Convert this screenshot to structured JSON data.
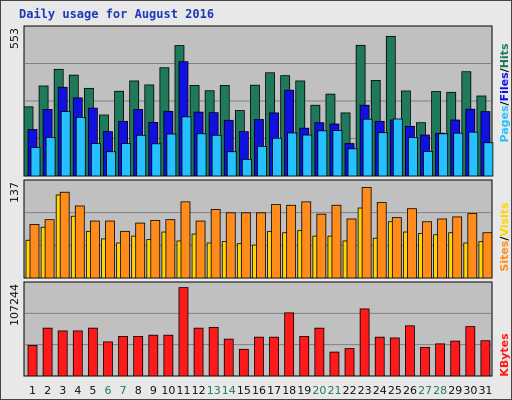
{
  "title": "Daily usage for August 2016",
  "colors": {
    "background": "#e8e8e8",
    "panel": "#c0c0c0",
    "grid": "#808080",
    "hits": "#1e7a5b",
    "files": "#1010e0",
    "pages": "#24c0ff",
    "visits": "#ffd400",
    "sites": "#ff8c1a",
    "kbytes": "#ff1a1a",
    "weekday_label": "#111111",
    "weekend_label": "#1e7a5b"
  },
  "chart_data": [
    {
      "type": "bar",
      "panel": "hits-files-pages",
      "ylim": [
        0,
        553
      ],
      "top_tick_label": "553",
      "legend": {
        "pages": "Pages",
        "files": "Files",
        "hits": "Hits",
        "separator": "/"
      },
      "categories": [
        "1",
        "2",
        "3",
        "4",
        "5",
        "6",
        "7",
        "8",
        "9",
        "10",
        "11",
        "12",
        "13",
        "14",
        "15",
        "16",
        "17",
        "18",
        "19",
        "20",
        "21",
        "22",
        "23",
        "24",
        "25",
        "26",
        "27",
        "28",
        "29",
        "30",
        "31"
      ],
      "series": [
        {
          "name": "Hits",
          "values": [
            262,
            341,
            404,
            382,
            332,
            231,
            321,
            360,
            345,
            410,
            494,
            343,
            323,
            343,
            248,
            344,
            391,
            380,
            360,
            268,
            310,
            239,
            495,
            362,
            529,
            322,
            202,
            320,
            317,
            395,
            303
          ]
        },
        {
          "name": "Files",
          "values": [
            176,
            252,
            336,
            296,
            257,
            168,
            207,
            252,
            203,
            245,
            433,
            242,
            240,
            211,
            168,
            214,
            239,
            325,
            181,
            202,
            197,
            123,
            268,
            207,
            212,
            188,
            155,
            162,
            212,
            253,
            244
          ]
        },
        {
          "name": "Pages",
          "values": [
            108,
            146,
            244,
            222,
            123,
            92,
            123,
            154,
            122,
            159,
            224,
            160,
            154,
            92,
            63,
            112,
            143,
            163,
            155,
            171,
            172,
            103,
            215,
            164,
            216,
            146,
            93,
            160,
            162,
            166,
            126
          ]
        }
      ]
    },
    {
      "type": "bar",
      "panel": "visits-sites",
      "ylim": [
        0,
        137
      ],
      "top_tick_label": "137",
      "legend": {
        "sites": "Sites",
        "visits": "Visits",
        "separator": "/"
      },
      "categories": [
        "1",
        "2",
        "3",
        "4",
        "5",
        "6",
        "7",
        "8",
        "9",
        "10",
        "11",
        "12",
        "13",
        "14",
        "15",
        "16",
        "17",
        "18",
        "19",
        "20",
        "21",
        "22",
        "23",
        "24",
        "25",
        "26",
        "27",
        "28",
        "29",
        "30",
        "31"
      ],
      "series": [
        {
          "name": "Visits",
          "values": [
            55,
            74,
            121,
            90,
            68,
            57,
            51,
            61,
            56,
            67,
            54,
            64,
            51,
            53,
            50,
            48,
            68,
            66,
            69,
            61,
            61,
            54,
            102,
            58,
            82,
            67,
            65,
            63,
            66,
            51,
            53
          ]
        },
        {
          "name": "Sites",
          "values": [
            78,
            85,
            125,
            105,
            83,
            83,
            68,
            80,
            84,
            85,
            111,
            83,
            100,
            95,
            95,
            95,
            107,
            106,
            111,
            93,
            106,
            86,
            132,
            110,
            88,
            101,
            82,
            86,
            89,
            94,
            66
          ]
        }
      ]
    },
    {
      "type": "bar",
      "panel": "kbytes",
      "ylim": [
        0,
        107244
      ],
      "top_tick_label": "107244",
      "legend": {
        "kbytes": "KBytes"
      },
      "categories": [
        "1",
        "2",
        "3",
        "4",
        "5",
        "6",
        "7",
        "8",
        "9",
        "10",
        "11",
        "12",
        "13",
        "14",
        "15",
        "16",
        "17",
        "18",
        "19",
        "20",
        "21",
        "22",
        "23",
        "24",
        "25",
        "26",
        "27",
        "28",
        "29",
        "30",
        "31"
      ],
      "series": [
        {
          "name": "KBytes",
          "values": [
            36440,
            57016,
            53742,
            53742,
            57016,
            40649,
            47196,
            47196,
            48600,
            48600,
            105374,
            57016,
            57954,
            43923,
            31762,
            46260,
            46260,
            75260,
            47196,
            57016,
            28488,
            32698,
            79937,
            46260,
            45325,
            59822,
            34102,
            38311,
            41585,
            58888,
            42053
          ]
        }
      ]
    }
  ],
  "days": [
    {
      "label": "1",
      "weekend": false
    },
    {
      "label": "2",
      "weekend": false
    },
    {
      "label": "3",
      "weekend": false
    },
    {
      "label": "4",
      "weekend": false
    },
    {
      "label": "5",
      "weekend": false
    },
    {
      "label": "6",
      "weekend": true
    },
    {
      "label": "7",
      "weekend": true
    },
    {
      "label": "8",
      "weekend": false
    },
    {
      "label": "9",
      "weekend": false
    },
    {
      "label": "10",
      "weekend": false
    },
    {
      "label": "11",
      "weekend": false
    },
    {
      "label": "12",
      "weekend": false
    },
    {
      "label": "13",
      "weekend": true
    },
    {
      "label": "14",
      "weekend": true
    },
    {
      "label": "15",
      "weekend": false
    },
    {
      "label": "16",
      "weekend": false
    },
    {
      "label": "17",
      "weekend": false
    },
    {
      "label": "18",
      "weekend": false
    },
    {
      "label": "19",
      "weekend": false
    },
    {
      "label": "20",
      "weekend": true
    },
    {
      "label": "21",
      "weekend": true
    },
    {
      "label": "22",
      "weekend": false
    },
    {
      "label": "23",
      "weekend": false
    },
    {
      "label": "24",
      "weekend": false
    },
    {
      "label": "25",
      "weekend": false
    },
    {
      "label": "26",
      "weekend": false
    },
    {
      "label": "27",
      "weekend": true
    },
    {
      "label": "28",
      "weekend": true
    },
    {
      "label": "29",
      "weekend": false
    },
    {
      "label": "30",
      "weekend": false
    },
    {
      "label": "31",
      "weekend": false
    }
  ]
}
